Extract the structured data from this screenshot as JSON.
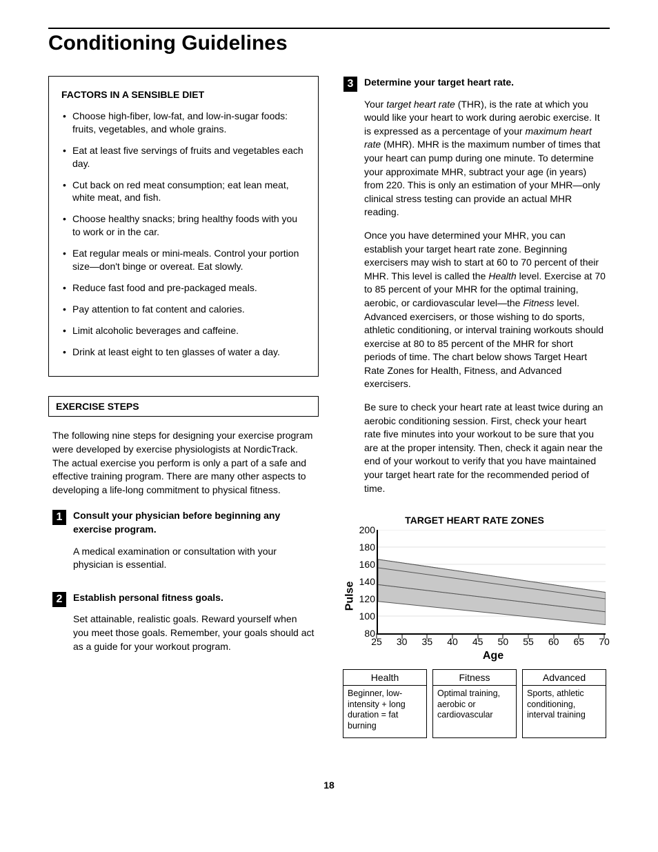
{
  "page_title": "Conditioning Guidelines",
  "page_number": "18",
  "diet_box": {
    "title": "FACTORS IN A SENSIBLE DIET",
    "items": [
      "Choose high-fiber, low-fat, and low-in-sugar foods: fruits, vegetables, and whole grains.",
      "Eat at least five servings of fruits and vegetables each day.",
      "Cut back on red meat consumption; eat lean meat, white meat, and fish.",
      "Choose healthy snacks; bring healthy foods with you to work or in the car.",
      "Eat regular meals or mini-meals. Control your portion size—don't binge or overeat. Eat slowly.",
      "Reduce fast food and pre-packaged meals.",
      "Pay attention to fat content and calories.",
      "Limit alcoholic beverages and caffeine.",
      "Drink at least eight to ten glasses of water a day."
    ]
  },
  "exercise_header": "EXERCISE STEPS",
  "exercise_intro": "The following nine steps for designing your exercise program were developed by exercise physiologists at NordicTrack. The actual exercise you perform is only a part of a safe and effective training program. There are many other aspects to developing a life-long commitment to physical fitness.",
  "steps": [
    {
      "num": "1",
      "title": "Consult your physician before beginning any exercise program.",
      "paras": [
        "A medical examination or consultation with your physician is essential."
      ]
    },
    {
      "num": "2",
      "title": "Establish personal fitness goals.",
      "paras": [
        "Set attainable, realistic goals. Reward yourself when you meet those goals. Remember, your goals should act as a guide for your workout program."
      ]
    },
    {
      "num": "3",
      "title": "Determine your target heart rate.",
      "paras": [
        "Your <span class=\"italic\">target heart rate</span> (THR), is the rate at which you would like your heart to work during aerobic exercise. It is expressed as a percentage of your <span class=\"italic\">maximum heart rate</span> (MHR). MHR is the maximum number of times that your heart can pump during one minute. To determine your approximate MHR, subtract your age (in years) from 220. This is only an estimation of your MHR—only clinical stress testing can provide an actual MHR reading.",
        "Once you have determined your MHR, you can establish your target heart rate zone. Beginning exercisers may wish to start at 60 to 70 percent of their MHR. This level is called the <span class=\"italic\">Health</span> level. Exercise at 70 to 85 percent of your MHR for the optimal training, aerobic, or cardiovascular level—the <span class=\"italic\">Fitness</span> level. Advanced exercisers, or those wishing to do sports, athletic conditioning, or interval training workouts should exercise at 80 to 85 percent of the MHR for short periods of time. The chart below shows Target Heart Rate Zones for Health, Fitness, and Advanced exercisers.",
        "Be sure to check your heart rate at least twice during an aerobic conditioning session. First, check your heart rate five minutes into your workout to be sure that you are at the proper intensity. Then, check it again near the end of your workout to verify that you have maintained your target heart rate for the recommended period of time."
      ]
    }
  ],
  "chart": {
    "title": "TARGET HEART RATE ZONES",
    "y_label": "Pulse",
    "x_label": "Age",
    "y_min": 80,
    "y_max": 200,
    "y_ticks": [
      80,
      100,
      120,
      140,
      160,
      180,
      200
    ],
    "x_min": 25,
    "x_max": 70,
    "x_ticks": [
      25,
      30,
      35,
      40,
      45,
      50,
      55,
      60,
      65,
      70
    ],
    "band_fill": "#c8c8c8",
    "band_stroke": "#555555",
    "grid_color": "#cccccc",
    "zones_order": [
      "health",
      "fitness",
      "advanced"
    ],
    "zones": {
      "advanced": {
        "pct_low": 0.8,
        "pct_high": 0.85
      },
      "fitness": {
        "pct_low": 0.7,
        "pct_high": 0.85
      },
      "health": {
        "pct_low": 0.6,
        "pct_high": 0.7
      }
    },
    "legend": [
      {
        "title": "Health",
        "desc": "Beginner, low-intensity + long duration = fat burning"
      },
      {
        "title": "Fitness",
        "desc": "Optimal training, aerobic or cardiovascular"
      },
      {
        "title": "Advanced",
        "desc": "Sports, athletic conditioning, interval training"
      }
    ]
  }
}
